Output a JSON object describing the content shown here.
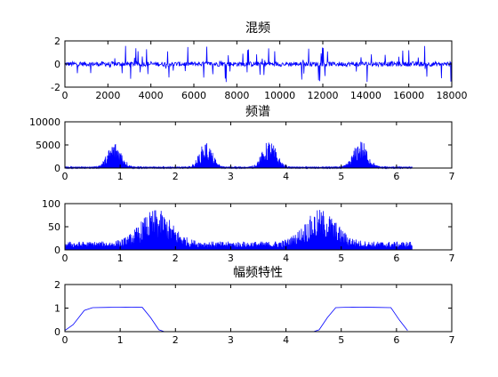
{
  "colors": {
    "line": "#0000ff",
    "axes": "#000000",
    "background": "#ffffff"
  },
  "chart_data": [
    {
      "type": "line",
      "title": "混频",
      "xlabel": "",
      "ylabel": "",
      "xlim": [
        0,
        18000
      ],
      "ylim": [
        -2,
        2
      ],
      "xticks": [
        "0",
        "2000",
        "4000",
        "6000",
        "8000",
        "10000",
        "12000",
        "14000",
        "16000",
        "18000"
      ],
      "yticks": [
        "-2",
        "0",
        "2"
      ],
      "grid": false,
      "description_values": {
        "x_range": [
          0,
          18000
        ],
        "typical_amplitude": 0.2,
        "peak_amplitude": 1.6
      },
      "series": [
        {
          "pattern": "noise",
          "x_range": [
            0,
            18000
          ],
          "base": 0.0,
          "amp_typ": 0.2,
          "amp_peak": 1.6
        }
      ]
    },
    {
      "type": "line",
      "title": "频谱",
      "xlabel": "",
      "ylabel": "",
      "xlim": [
        0,
        7
      ],
      "ylim": [
        0,
        10000
      ],
      "xticks": [
        "0",
        "1",
        "2",
        "3",
        "4",
        "5",
        "6",
        "7"
      ],
      "yticks": [
        "0",
        "5000",
        "10000"
      ],
      "grid": false,
      "series": [
        {
          "pattern": "spectrum",
          "x_range": [
            0,
            6.28
          ],
          "base": 300,
          "peaks": [
            {
              "center": 0.9,
              "width": 0.22,
              "height": 5500
            },
            {
              "center": 2.55,
              "width": 0.2,
              "height": 5500
            },
            {
              "center": 3.7,
              "width": 0.22,
              "height": 5800
            },
            {
              "center": 5.35,
              "width": 0.22,
              "height": 5800
            }
          ]
        }
      ]
    },
    {
      "type": "line",
      "title": "",
      "xlabel": "",
      "ylabel": "",
      "xlim": [
        0,
        7
      ],
      "ylim": [
        0,
        100
      ],
      "xticks": [
        "0",
        "1",
        "2",
        "3",
        "4",
        "5",
        "6",
        "7"
      ],
      "yticks": [
        "0",
        "50",
        "100"
      ],
      "grid": false,
      "series": [
        {
          "pattern": "spectrum",
          "x_range": [
            0,
            6.28
          ],
          "base": 18,
          "peaks": [
            {
              "center": 1.65,
              "width": 0.5,
              "height": 70
            },
            {
              "center": 4.63,
              "width": 0.5,
              "height": 70
            }
          ]
        }
      ]
    },
    {
      "type": "line",
      "title": "幅频特性",
      "xlabel": "",
      "ylabel": "",
      "xlim": [
        0,
        7
      ],
      "ylim": [
        0,
        2
      ],
      "xticks": [
        "0",
        "1",
        "2",
        "3",
        "4",
        "5",
        "6",
        "7"
      ],
      "yticks": [
        "0",
        "1",
        "2"
      ],
      "grid": false,
      "series": [
        {
          "pattern": "points",
          "x": [
            0,
            0.15,
            0.35,
            0.5,
            0.8,
            1.1,
            1.4,
            1.55,
            1.7,
            1.8,
            4.5,
            4.6,
            4.75,
            4.9,
            5.2,
            5.6,
            5.9,
            6.05,
            6.2
          ],
          "y": [
            0.05,
            0.3,
            0.9,
            1.02,
            1.03,
            1.04,
            1.03,
            0.6,
            0.08,
            0.0,
            0.0,
            0.08,
            0.6,
            1.02,
            1.04,
            1.03,
            1.02,
            0.5,
            0.05
          ]
        }
      ]
    }
  ]
}
